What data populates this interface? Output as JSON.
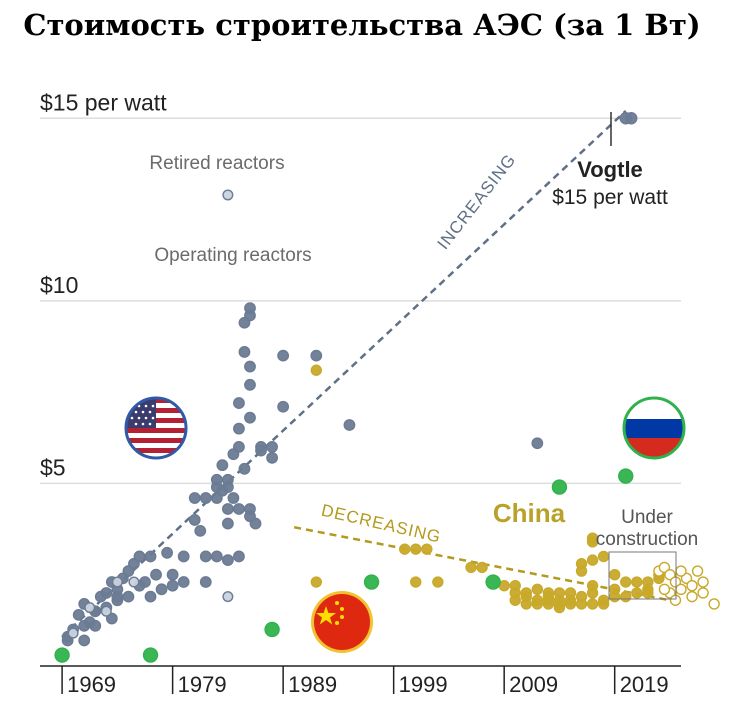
{
  "colors": {
    "usa": "#6b7b94",
    "usa_retired_fill": "#c9d3de",
    "china": "#c8a92a",
    "china_construction_fill": "#ffffff",
    "russia": "#2fb24c",
    "grid": "#dddddd",
    "axis": "#222222",
    "trend_up": "#5f7086",
    "trend_down": "#b29a1e"
  },
  "chart_data": {
    "type": "scatter",
    "title": "Стоимость строительства АЭС (за 1 Вт)",
    "xlabel": "",
    "ylabel": "",
    "xlim": [
      1967,
      2025
    ],
    "ylim": [
      0,
      15.5
    ],
    "y_ticks": [
      {
        "value": 5,
        "label": "$5"
      },
      {
        "value": 10,
        "label": "$10"
      },
      {
        "value": 15,
        "label": "$15 per watt"
      }
    ],
    "x_ticks": [
      {
        "value": 1969,
        "label": "1969"
      },
      {
        "value": 1979,
        "label": "1979"
      },
      {
        "value": 1989,
        "label": "1989"
      },
      {
        "value": 1999,
        "label": "1999"
      },
      {
        "value": 2009,
        "label": "2009"
      },
      {
        "value": 2019,
        "label": "2019"
      }
    ],
    "annotations": {
      "retired": "Retired reactors",
      "operating": "Operating reactors",
      "vogtle_name": "Vogtle",
      "vogtle_value": "$15 per watt",
      "increasing": "INCREASING",
      "decreasing": "DECREASING",
      "china": "China",
      "under_1": "Under",
      "under_2": "construction"
    },
    "trends": [
      {
        "name": "INCREASING",
        "from": [
          1969,
          0.8
        ],
        "to": [
          2020,
          15.2
        ]
      },
      {
        "name": "DECREASING",
        "from": [
          1990,
          3.8
        ],
        "to": [
          2024,
          1.8
        ]
      }
    ],
    "flags": [
      "USA",
      "China",
      "Russia"
    ],
    "series": [
      {
        "name": "USA operating reactors",
        "points": [
          [
            1969.5,
            0.8
          ],
          [
            1970,
            1.0
          ],
          [
            1970.5,
            1.4
          ],
          [
            1971,
            1.7
          ],
          [
            1971,
            0.7
          ],
          [
            1971.5,
            1.2
          ],
          [
            1972,
            1.5
          ],
          [
            1972,
            1.1
          ],
          [
            1972.5,
            1.9
          ],
          [
            1973,
            1.6
          ],
          [
            1973,
            2.0
          ],
          [
            1973.5,
            1.3
          ],
          [
            1973.5,
            2.3
          ],
          [
            1974,
            2.1
          ],
          [
            1974,
            1.8
          ],
          [
            1974.5,
            2.4
          ],
          [
            1975,
            2.6
          ],
          [
            1975,
            1.9
          ],
          [
            1975.5,
            2.8
          ],
          [
            1976,
            3.0
          ],
          [
            1976,
            2.2
          ],
          [
            1977,
            3.0
          ],
          [
            1977,
            1.9
          ],
          [
            1977.5,
            2.5
          ],
          [
            1978,
            2.1
          ],
          [
            1978.5,
            3.1
          ],
          [
            1979,
            2.5
          ],
          [
            1979,
            2.2
          ],
          [
            1980,
            2.3
          ],
          [
            1980,
            3.0
          ],
          [
            1981,
            4.6
          ],
          [
            1981,
            4.0
          ],
          [
            1981.5,
            3.7
          ],
          [
            1982,
            4.6
          ],
          [
            1982,
            3.0
          ],
          [
            1982,
            2.3
          ],
          [
            1983,
            4.9
          ],
          [
            1983,
            5.1
          ],
          [
            1983,
            4.6
          ],
          [
            1983,
            3.0
          ],
          [
            1983.5,
            4.8
          ],
          [
            1983.5,
            5.5
          ],
          [
            1984,
            4.9
          ],
          [
            1984,
            5.1
          ],
          [
            1984,
            4.3
          ],
          [
            1984,
            3.9
          ],
          [
            1984,
            2.9
          ],
          [
            1984.5,
            5.8
          ],
          [
            1984.5,
            4.6
          ],
          [
            1985,
            6.5
          ],
          [
            1985,
            7.2
          ],
          [
            1985,
            6.0
          ],
          [
            1985,
            4.3
          ],
          [
            1985,
            3.0
          ],
          [
            1985.5,
            8.6
          ],
          [
            1985.5,
            9.4
          ],
          [
            1985.5,
            5.4
          ],
          [
            1986,
            6.8
          ],
          [
            1986,
            7.7
          ],
          [
            1986,
            9.8
          ],
          [
            1986,
            9.6
          ],
          [
            1986,
            8.2
          ],
          [
            1986,
            4.1
          ],
          [
            1986,
            4.3
          ],
          [
            1986.5,
            3.9
          ],
          [
            1987,
            6.0
          ],
          [
            1987,
            5.9
          ],
          [
            1988,
            5.7
          ],
          [
            1988,
            6.0
          ],
          [
            1989,
            7.1
          ],
          [
            1989,
            8.5
          ],
          [
            1992,
            8.5
          ],
          [
            1995,
            6.6
          ],
          [
            2012,
            6.1
          ],
          [
            1971,
            1.1
          ],
          [
            1969.5,
            0.7
          ],
          [
            1972,
            1.5
          ],
          [
            1974,
            1.9
          ],
          [
            1976.5,
            2.3
          ]
        ]
      },
      {
        "name": "USA retired reactors",
        "points": [
          [
            1984,
            12.9
          ],
          [
            1973,
            1.5
          ],
          [
            1974,
            2.3
          ],
          [
            1975.5,
            2.3
          ],
          [
            1971.5,
            1.6
          ],
          [
            1970,
            0.9
          ],
          [
            1984,
            1.9
          ]
        ]
      },
      {
        "name": "USA Vogtle",
        "points": [
          [
            2020,
            15.0
          ],
          [
            2020.5,
            15.0
          ]
        ]
      },
      {
        "name": "China operating reactors",
        "points": [
          [
            1992,
            8.1
          ],
          [
            1992,
            2.3
          ],
          [
            2000,
            3.2
          ],
          [
            2001,
            3.2
          ],
          [
            2002,
            3.2
          ],
          [
            2001,
            2.3
          ],
          [
            2003,
            2.3
          ],
          [
            2006,
            2.7
          ],
          [
            2007,
            2.7
          ],
          [
            2010,
            2.2
          ],
          [
            2010,
            2.0
          ],
          [
            2011,
            1.9
          ],
          [
            2011,
            1.7
          ],
          [
            2012,
            2.1
          ],
          [
            2012,
            1.8
          ],
          [
            2012,
            1.7
          ],
          [
            2013,
            1.7
          ],
          [
            2013,
            1.9
          ],
          [
            2013,
            2.0
          ],
          [
            2014,
            2.0
          ],
          [
            2014,
            1.8
          ],
          [
            2014,
            1.6
          ],
          [
            2014,
            1.7
          ],
          [
            2015,
            1.7
          ],
          [
            2015,
            2.0
          ],
          [
            2016,
            1.9
          ],
          [
            2016,
            1.7
          ],
          [
            2016,
            2.8
          ],
          [
            2017,
            2.0
          ],
          [
            2017,
            1.7
          ],
          [
            2017,
            2.2
          ],
          [
            2017,
            2.9
          ],
          [
            2017,
            3.4
          ],
          [
            2017,
            3.5
          ],
          [
            2018,
            1.8
          ],
          [
            2018,
            1.7
          ],
          [
            2018,
            3.0
          ],
          [
            2019,
            1.9
          ],
          [
            2020,
            1.9
          ],
          [
            2021,
            2.0
          ],
          [
            2021,
            2.3
          ],
          [
            2022,
            2.3
          ],
          [
            2022,
            2.0
          ],
          [
            2022,
            2.1
          ],
          [
            2023,
            2.4
          ],
          [
            2023,
            2.5
          ],
          [
            2016,
            2.6
          ],
          [
            2019,
            2.5
          ],
          [
            2020,
            2.3
          ],
          [
            2011,
            2.0
          ],
          [
            2009,
            2.2
          ],
          [
            2010,
            1.8
          ],
          [
            2013,
            1.8
          ],
          [
            2015,
            1.8
          ],
          [
            2019,
            2.1
          ]
        ]
      },
      {
        "name": "China under construction",
        "points": [
          [
            2023,
            2.6
          ],
          [
            2023.5,
            2.7
          ],
          [
            2024,
            2.5
          ],
          [
            2024.5,
            2.3
          ],
          [
            2024,
            2.0
          ],
          [
            2025,
            2.1
          ],
          [
            2025.5,
            2.4
          ],
          [
            2026,
            2.2
          ],
          [
            2026,
            1.9
          ],
          [
            2027,
            2.3
          ],
          [
            2027,
            2.0
          ],
          [
            2028,
            1.7
          ],
          [
            2023.5,
            2.1
          ],
          [
            2025,
            2.6
          ],
          [
            2024.5,
            1.8
          ],
          [
            2026.5,
            2.6
          ]
        ]
      },
      {
        "name": "Russia reactors",
        "points": [
          [
            1969,
            0.3
          ],
          [
            1977,
            0.3
          ],
          [
            1988,
            1.0
          ],
          [
            1997,
            2.3
          ],
          [
            2008,
            2.3
          ],
          [
            2014,
            4.9
          ],
          [
            2020,
            5.2
          ]
        ]
      }
    ]
  }
}
